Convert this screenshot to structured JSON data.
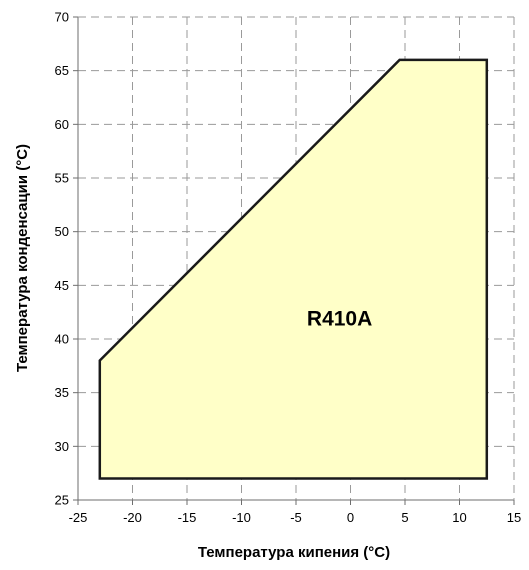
{
  "chart_data": {
    "type": "area",
    "title": "",
    "xlabel": "Температура кипения (°C)",
    "ylabel": "Температура конденсации (°C)",
    "xlim": [
      -25,
      15
    ],
    "ylim": [
      25,
      70
    ],
    "xticks": [
      -25,
      -20,
      -15,
      -10,
      -5,
      0,
      5,
      10,
      15
    ],
    "yticks": [
      25,
      30,
      35,
      40,
      45,
      50,
      55,
      60,
      65,
      70
    ],
    "xtick_labels": [
      "-25",
      "-20",
      "-15",
      "-10",
      "-5",
      "0",
      "5",
      "10",
      "15"
    ],
    "ytick_labels": [
      "25",
      "30",
      "35",
      "40",
      "45",
      "50",
      "55",
      "60",
      "65",
      "70"
    ],
    "grid": true,
    "grid_style": "dashed",
    "fill_color": "#ffffc8",
    "line_color": "#1a1a1a",
    "series": [
      {
        "name": "R410A",
        "polygon": [
          {
            "x": -23,
            "y": 27
          },
          {
            "x": -23,
            "y": 38
          },
          {
            "x": 4.5,
            "y": 66
          },
          {
            "x": 12.5,
            "y": 66
          },
          {
            "x": 12.5,
            "y": 27
          }
        ]
      }
    ],
    "annotations": [
      {
        "text": "R410A",
        "x": -1,
        "y": 42
      }
    ]
  }
}
